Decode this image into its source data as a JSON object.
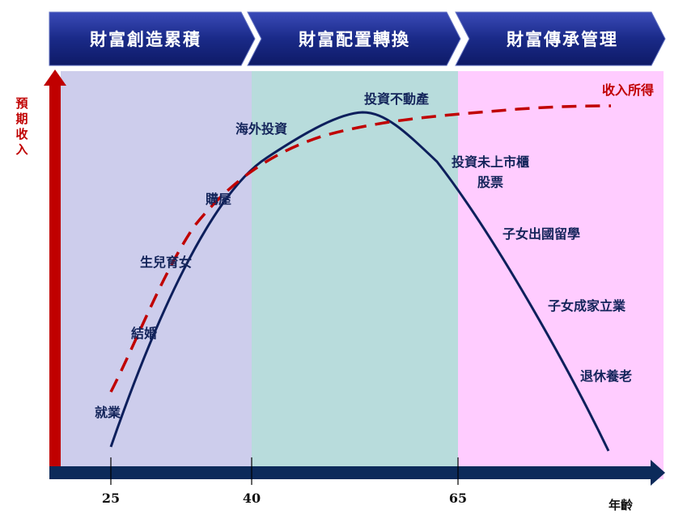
{
  "phases": [
    {
      "label": "財富創造累積",
      "color": "#cdcdec"
    },
    {
      "label": "財富配置轉換",
      "color": "#b8dcdc"
    },
    {
      "label": "財富傳承管理",
      "color": "#ffccff"
    }
  ],
  "phase_banner_color": "#1a2a80",
  "x_axis": {
    "title": "年齡",
    "ticks": [
      "25",
      "40",
      "65"
    ],
    "color": "#0c2a5a"
  },
  "y_axis": {
    "title_chars": [
      "預",
      "期",
      "收",
      "入"
    ],
    "color": "#c00000"
  },
  "curves": {
    "life_stage": {
      "color": "#0d1f5c",
      "style": "solid"
    },
    "income": {
      "label": "收入所得",
      "color": "#c00000",
      "style": "dashed"
    }
  },
  "life_stages": [
    {
      "label": "就業"
    },
    {
      "label": "結婚"
    },
    {
      "label": "生兒育女"
    },
    {
      "label": "購屋"
    },
    {
      "label": "海外投資"
    },
    {
      "label": "投資不動產"
    },
    {
      "label": "投資未上市櫃"
    },
    {
      "label": "股票"
    },
    {
      "label": "子女出國留學"
    },
    {
      "label": "子女成家立業"
    },
    {
      "label": "退休養老"
    }
  ]
}
